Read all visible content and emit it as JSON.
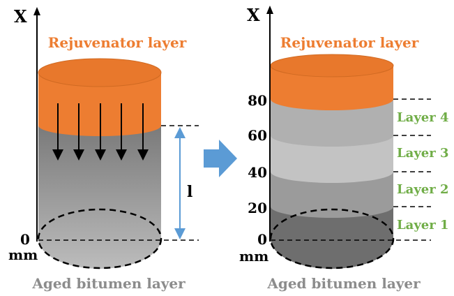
{
  "colors": {
    "rejuvenator": "#ed7d31",
    "rejuvenator_dark": "#d4691f",
    "bitumen_dark": "#5f5f5f",
    "bitumen_light": "#bdbdbd",
    "layer_label": "#70ad47",
    "arrow_blue": "#5b9bd5",
    "bottom_label": "#8c8c8c"
  },
  "left": {
    "axis_label": "X",
    "title": "Rejuvenator layer",
    "origin_label": "0",
    "unit_label": "mm",
    "length_label": "l",
    "bottom_caption": "Aged bitumen layer"
  },
  "right": {
    "axis_label": "X",
    "title": "Rejuvenator layer",
    "ticks": [
      "80",
      "60",
      "40",
      "20",
      "0"
    ],
    "unit_label": "mm",
    "layers": [
      "Layer 4",
      "Layer 3",
      "Layer 2",
      "Layer 1"
    ],
    "bottom_caption": "Aged bitumen layer"
  }
}
